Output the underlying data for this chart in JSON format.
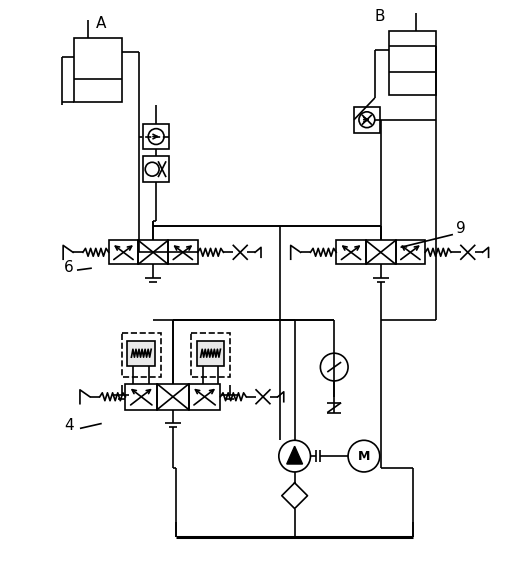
{
  "bg": "#ffffff",
  "lc": "black",
  "lw": 1.2,
  "label_A": "A",
  "label_B": "B",
  "label_6": "6",
  "label_9": "9",
  "label_4": "4"
}
